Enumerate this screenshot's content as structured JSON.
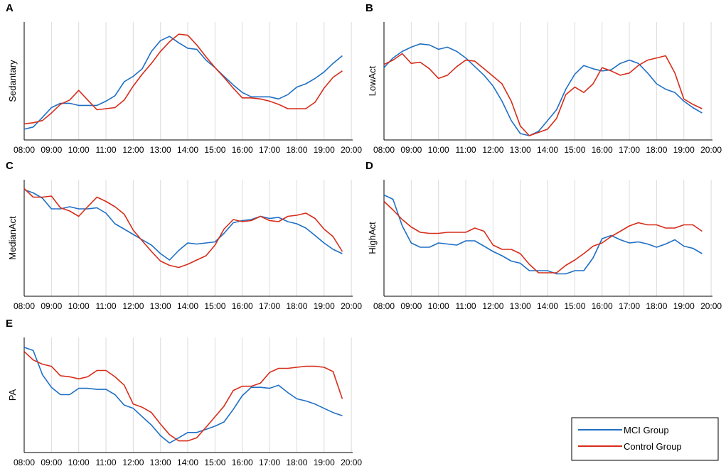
{
  "colors": {
    "mci": "#1F6FC5",
    "control": "#D62D1A",
    "grid": "#DCDCDC",
    "axis": "#000000"
  },
  "legend": {
    "items": [
      {
        "label": "MCI Group",
        "color": "#1F6FC5"
      },
      {
        "label": "Control Group",
        "color": "#D62D1A"
      }
    ],
    "placement": "bottom-right"
  },
  "chart_data": [
    {
      "panel": "A",
      "type": "line",
      "ylabel": "Sedantary",
      "ticks": [
        "08:00",
        "09:00",
        "10:00",
        "11:00",
        "12:00",
        "13:00",
        "14:00",
        "15:00",
        "16:00",
        "17:00",
        "18:00",
        "19:00",
        "20:00"
      ],
      "xlim": [
        8,
        20.05
      ],
      "ylim": [
        0,
        1
      ],
      "grid": "vertical",
      "x": [
        8.0,
        8.33,
        8.67,
        9.0,
        9.33,
        9.67,
        10.0,
        10.33,
        10.67,
        11.0,
        11.33,
        11.67,
        12.0,
        12.33,
        12.67,
        13.0,
        13.33,
        13.67,
        14.0,
        14.33,
        14.67,
        15.0,
        15.33,
        15.67,
        16.0,
        16.33,
        16.67,
        17.0,
        17.33,
        17.67,
        18.0,
        18.33,
        18.67,
        19.0,
        19.33,
        19.67
      ],
      "series": [
        {
          "name": "MCI Group",
          "values": [
            0.06,
            0.08,
            0.17,
            0.26,
            0.3,
            0.3,
            0.28,
            0.28,
            0.28,
            0.32,
            0.37,
            0.5,
            0.55,
            0.62,
            0.78,
            0.88,
            0.92,
            0.86,
            0.81,
            0.8,
            0.7,
            0.63,
            0.55,
            0.47,
            0.4,
            0.36,
            0.36,
            0.36,
            0.34,
            0.38,
            0.45,
            0.48,
            0.53,
            0.59,
            0.67,
            0.74
          ]
        },
        {
          "name": "Control Group",
          "values": [
            0.11,
            0.12,
            0.14,
            0.21,
            0.29,
            0.33,
            0.42,
            0.33,
            0.24,
            0.25,
            0.26,
            0.33,
            0.46,
            0.57,
            0.67,
            0.78,
            0.87,
            0.94,
            0.93,
            0.84,
            0.73,
            0.63,
            0.54,
            0.44,
            0.35,
            0.35,
            0.34,
            0.32,
            0.29,
            0.25,
            0.25,
            0.25,
            0.31,
            0.44,
            0.54,
            0.6
          ]
        }
      ]
    },
    {
      "panel": "B",
      "type": "line",
      "ylabel": "LowAct",
      "ticks": [
        "08:00",
        "09:00",
        "10:00",
        "11:00",
        "12:00",
        "13:00",
        "14:00",
        "15:00",
        "16:00",
        "17:00",
        "18:00",
        "19:00",
        "20:00"
      ],
      "xlim": [
        8,
        20.05
      ],
      "ylim": [
        0,
        1
      ],
      "grid": "vertical",
      "x": [
        8.0,
        8.33,
        8.67,
        9.0,
        9.33,
        9.67,
        10.0,
        10.33,
        10.67,
        11.0,
        11.33,
        11.67,
        12.0,
        12.33,
        12.67,
        13.0,
        13.33,
        13.67,
        14.0,
        14.33,
        14.67,
        15.0,
        15.33,
        15.67,
        16.0,
        16.33,
        16.67,
        17.0,
        17.33,
        17.67,
        18.0,
        18.33,
        18.67,
        19.0,
        19.33,
        19.67
      ],
      "series": [
        {
          "name": "MCI Group",
          "values": [
            0.63,
            0.72,
            0.78,
            0.82,
            0.85,
            0.84,
            0.8,
            0.82,
            0.78,
            0.72,
            0.64,
            0.56,
            0.46,
            0.32,
            0.14,
            0.02,
            0.0,
            0.04,
            0.14,
            0.24,
            0.43,
            0.57,
            0.65,
            0.62,
            0.6,
            0.61,
            0.67,
            0.7,
            0.67,
            0.58,
            0.48,
            0.43,
            0.4,
            0.32,
            0.26,
            0.21
          ]
        },
        {
          "name": "Control Group",
          "values": [
            0.66,
            0.7,
            0.76,
            0.67,
            0.68,
            0.62,
            0.53,
            0.56,
            0.64,
            0.7,
            0.69,
            0.62,
            0.55,
            0.48,
            0.32,
            0.09,
            0.0,
            0.03,
            0.06,
            0.16,
            0.38,
            0.45,
            0.4,
            0.48,
            0.63,
            0.6,
            0.56,
            0.58,
            0.65,
            0.7,
            0.72,
            0.74,
            0.58,
            0.34,
            0.29,
            0.25
          ]
        }
      ]
    },
    {
      "panel": "C",
      "type": "line",
      "ylabel": "MedianAct",
      "ticks": [
        "08:00",
        "09:00",
        "10:00",
        "11:00",
        "12:00",
        "13:00",
        "14:00",
        "15:00",
        "16:00",
        "17:00",
        "18:00",
        "19:00",
        "20:00"
      ],
      "xlim": [
        8,
        20.05
      ],
      "ylim": [
        0,
        1
      ],
      "grid": "vertical",
      "x": [
        8.0,
        8.33,
        8.67,
        9.0,
        9.33,
        9.67,
        10.0,
        10.33,
        10.67,
        11.0,
        11.33,
        11.67,
        12.0,
        12.33,
        12.67,
        13.0,
        13.33,
        13.67,
        14.0,
        14.33,
        14.67,
        15.0,
        15.33,
        15.67,
        16.0,
        16.33,
        16.67,
        17.0,
        17.33,
        17.67,
        18.0,
        18.33,
        18.67,
        19.0,
        19.33,
        19.67
      ],
      "series": [
        {
          "name": "MCI Group",
          "values": [
            0.96,
            0.93,
            0.88,
            0.78,
            0.78,
            0.8,
            0.78,
            0.78,
            0.79,
            0.74,
            0.64,
            0.59,
            0.54,
            0.49,
            0.44,
            0.36,
            0.3,
            0.39,
            0.46,
            0.45,
            0.46,
            0.47,
            0.55,
            0.65,
            0.67,
            0.68,
            0.71,
            0.69,
            0.7,
            0.66,
            0.64,
            0.6,
            0.53,
            0.46,
            0.4,
            0.36
          ]
        },
        {
          "name": "Control Group",
          "values": [
            0.97,
            0.89,
            0.89,
            0.9,
            0.79,
            0.76,
            0.71,
            0.8,
            0.89,
            0.85,
            0.8,
            0.73,
            0.58,
            0.48,
            0.38,
            0.29,
            0.25,
            0.23,
            0.26,
            0.3,
            0.34,
            0.44,
            0.59,
            0.68,
            0.66,
            0.67,
            0.71,
            0.67,
            0.66,
            0.71,
            0.72,
            0.74,
            0.69,
            0.59,
            0.52,
            0.38
          ]
        }
      ]
    },
    {
      "panel": "D",
      "type": "line",
      "ylabel": "HighAct",
      "ticks": [
        "08:00",
        "09:00",
        "10:00",
        "11:00",
        "12:00",
        "13:00",
        "14:00",
        "15:00",
        "16:00",
        "17:00",
        "18:00",
        "19:00",
        "20:00"
      ],
      "xlim": [
        8,
        20.05
      ],
      "ylim": [
        0,
        1
      ],
      "grid": "vertical",
      "x": [
        8.0,
        8.33,
        8.67,
        9.0,
        9.33,
        9.67,
        10.0,
        10.33,
        10.67,
        11.0,
        11.33,
        11.67,
        12.0,
        12.33,
        12.67,
        13.0,
        13.33,
        13.67,
        14.0,
        14.33,
        14.67,
        15.0,
        15.33,
        15.67,
        16.0,
        16.33,
        16.67,
        17.0,
        17.33,
        17.67,
        18.0,
        18.33,
        18.67,
        19.0,
        19.33,
        19.67
      ],
      "series": [
        {
          "name": "MCI Group",
          "values": [
            0.91,
            0.87,
            0.62,
            0.46,
            0.42,
            0.42,
            0.46,
            0.45,
            0.44,
            0.48,
            0.48,
            0.43,
            0.38,
            0.34,
            0.29,
            0.27,
            0.2,
            0.2,
            0.2,
            0.17,
            0.17,
            0.2,
            0.2,
            0.32,
            0.5,
            0.53,
            0.49,
            0.46,
            0.47,
            0.45,
            0.42,
            0.45,
            0.49,
            0.43,
            0.41,
            0.36
          ]
        },
        {
          "name": "Control Group",
          "values": [
            0.85,
            0.77,
            0.68,
            0.61,
            0.56,
            0.55,
            0.55,
            0.56,
            0.56,
            0.56,
            0.6,
            0.57,
            0.44,
            0.4,
            0.4,
            0.36,
            0.26,
            0.18,
            0.18,
            0.18,
            0.25,
            0.3,
            0.36,
            0.43,
            0.46,
            0.52,
            0.57,
            0.62,
            0.65,
            0.63,
            0.63,
            0.6,
            0.6,
            0.63,
            0.63,
            0.57
          ]
        }
      ]
    },
    {
      "panel": "E",
      "type": "line",
      "ylabel": "PA",
      "ticks": [
        "08:00",
        "09:00",
        "10:00",
        "11:00",
        "12:00",
        "13:00",
        "14:00",
        "15:00",
        "16:00",
        "17:00",
        "18:00",
        "19:00",
        "20:00"
      ],
      "xlim": [
        8,
        20.05
      ],
      "ylim": [
        0,
        1
      ],
      "grid": "vertical",
      "x": [
        8.0,
        8.33,
        8.67,
        9.0,
        9.33,
        9.67,
        10.0,
        10.33,
        10.67,
        11.0,
        11.33,
        11.67,
        12.0,
        12.33,
        12.67,
        13.0,
        13.33,
        13.67,
        14.0,
        14.33,
        14.67,
        15.0,
        15.33,
        15.67,
        16.0,
        16.33,
        16.67,
        17.0,
        17.33,
        17.67,
        18.0,
        18.33,
        18.67,
        19.0,
        19.33,
        19.67
      ],
      "series": [
        {
          "name": "MCI Group",
          "values": [
            0.96,
            0.93,
            0.7,
            0.58,
            0.51,
            0.51,
            0.57,
            0.57,
            0.56,
            0.56,
            0.51,
            0.41,
            0.38,
            0.3,
            0.22,
            0.12,
            0.05,
            0.1,
            0.15,
            0.15,
            0.18,
            0.21,
            0.25,
            0.37,
            0.5,
            0.58,
            0.58,
            0.57,
            0.6,
            0.53,
            0.47,
            0.45,
            0.42,
            0.38,
            0.34,
            0.31
          ]
        },
        {
          "name": "Control Group",
          "values": [
            0.92,
            0.84,
            0.8,
            0.78,
            0.69,
            0.68,
            0.66,
            0.68,
            0.74,
            0.74,
            0.68,
            0.6,
            0.42,
            0.39,
            0.34,
            0.23,
            0.13,
            0.07,
            0.07,
            0.1,
            0.2,
            0.3,
            0.4,
            0.55,
            0.59,
            0.59,
            0.62,
            0.72,
            0.76,
            0.76,
            0.77,
            0.78,
            0.78,
            0.77,
            0.73,
            0.47
          ]
        }
      ]
    }
  ]
}
